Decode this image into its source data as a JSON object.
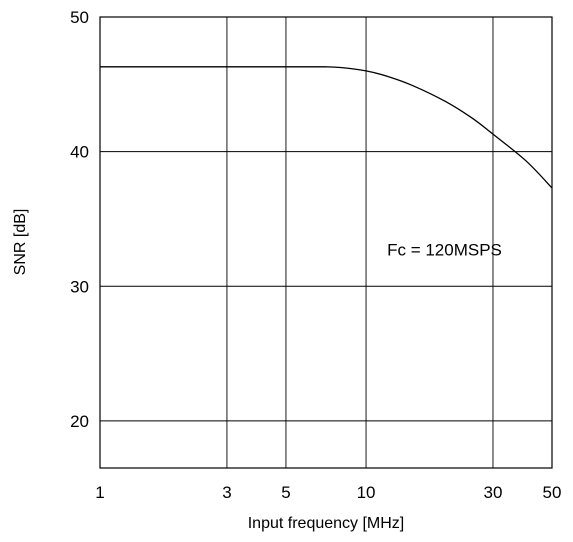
{
  "chart_data": {
    "type": "line",
    "title": "",
    "xlabel": "Input frequency [MHz]",
    "ylabel": "SNR [dB]",
    "xscale": "log",
    "xlim": [
      1,
      50
    ],
    "ylim": [
      16.5,
      50
    ],
    "x_ticks": [
      {
        "value": 1,
        "label": "1"
      },
      {
        "value": 3,
        "label": "3"
      },
      {
        "value": 5,
        "label": "5"
      },
      {
        "value": 10,
        "label": "10"
      },
      {
        "value": 30,
        "label": "30"
      },
      {
        "value": 50,
        "label": "50"
      }
    ],
    "y_ticks": [
      {
        "value": 20,
        "label": "20"
      },
      {
        "value": 30,
        "label": "30"
      },
      {
        "value": 40,
        "label": "40"
      },
      {
        "value": 50,
        "label": "50"
      }
    ],
    "grid": true,
    "series": [
      {
        "x": [
          1,
          3,
          5,
          7,
          8,
          10,
          12,
          15,
          20,
          25,
          30,
          40,
          50
        ],
        "y": [
          46.3,
          46.3,
          46.3,
          46.3,
          46.25,
          46.0,
          45.6,
          44.9,
          43.7,
          42.5,
          41.3,
          39.3,
          37.3
        ]
      }
    ],
    "annotations": [
      {
        "text": "Fc = 120MSPS",
        "x": 12,
        "y": 32.3
      }
    ]
  }
}
